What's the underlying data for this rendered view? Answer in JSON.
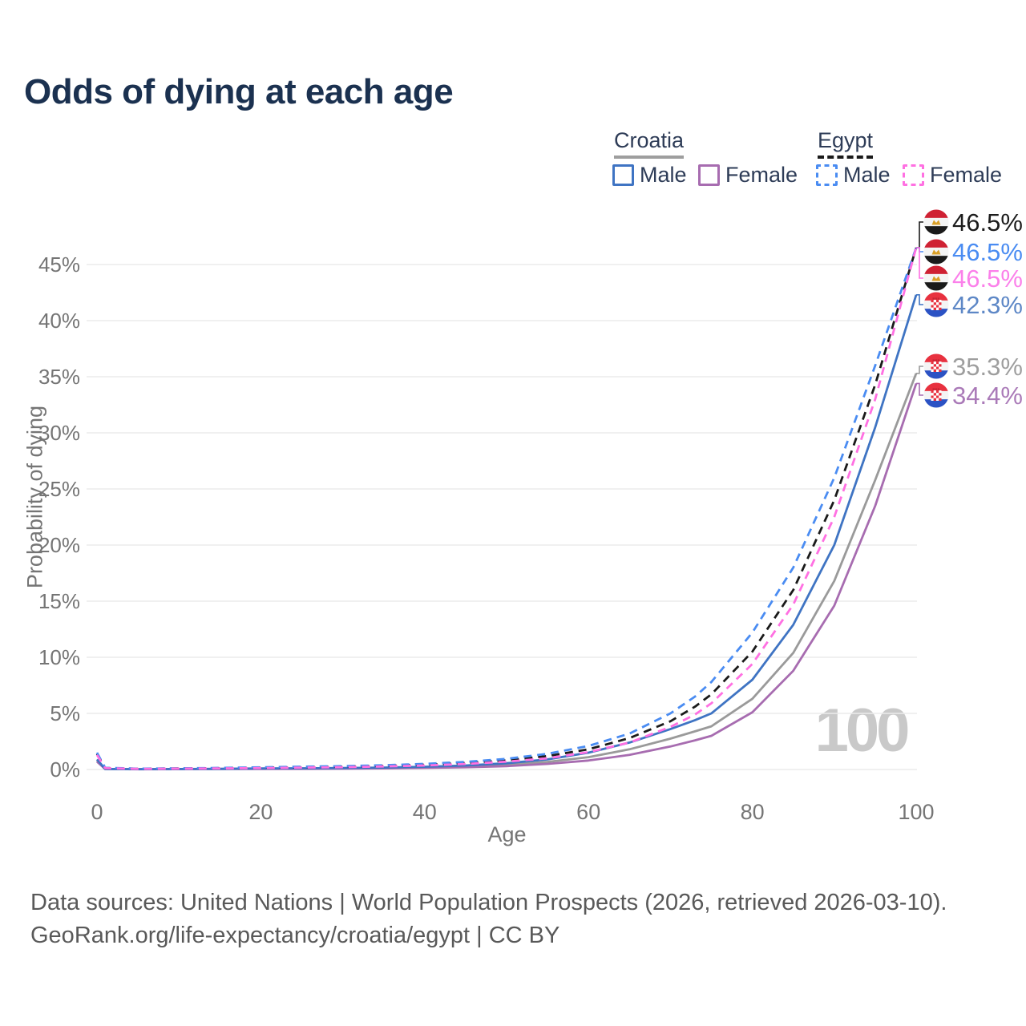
{
  "title": "Odds of dying at each age",
  "legend": {
    "groups": [
      {
        "name": "Croatia",
        "line_style": "solid",
        "header_color": "#9e9e9e",
        "items": [
          {
            "label": "Male",
            "color": "#3f74c3"
          },
          {
            "label": "Female",
            "color": "#a76cb0"
          }
        ]
      },
      {
        "name": "Egypt",
        "line_style": "dashed",
        "header_color": "#1a1a1a",
        "items": [
          {
            "label": "Male",
            "color": "#4a8cf2"
          },
          {
            "label": "Female",
            "color": "#ff70e2"
          }
        ]
      }
    ]
  },
  "axes": {
    "x_label": "Age",
    "y_label": "Probability of dying",
    "x_ticks": [
      "0",
      "20",
      "40",
      "60",
      "80",
      "100"
    ],
    "y_ticks": [
      "0%",
      "5%",
      "10%",
      "15%",
      "20%",
      "25%",
      "30%",
      "35%",
      "40%",
      "45%"
    ]
  },
  "watermark": "100",
  "footer": {
    "line1": "Data sources: United Nations | World Population Prospects (2026, retrieved 2026-03-10).",
    "line2": "GeoRank.org/life-expectancy/croatia/egypt | CC BY"
  },
  "chart_data": {
    "type": "line",
    "title": "Odds of dying at each age",
    "xlabel": "Age",
    "ylabel": "Probability of dying",
    "xlim": [
      0,
      100
    ],
    "ylim": [
      0,
      47
    ],
    "grid": "horizontal",
    "legend_position": "top-right",
    "x": [
      0,
      1,
      5,
      10,
      15,
      20,
      25,
      30,
      35,
      40,
      45,
      50,
      55,
      60,
      65,
      70,
      73,
      75,
      80,
      85,
      90,
      95,
      100
    ],
    "y_unit": "percent",
    "series": [
      {
        "id": "croatia-both",
        "name": "Croatia Both sexes",
        "country": "Croatia",
        "sex": "Both",
        "color": "#9a9a9a",
        "dash": false,
        "values": [
          0.8,
          0.045,
          0.025,
          0.035,
          0.05,
          0.07,
          0.085,
          0.1,
          0.13,
          0.18,
          0.27,
          0.42,
          0.68,
          1.1,
          1.8,
          2.75,
          3.4,
          3.85,
          6.3,
          10.4,
          16.8,
          25.8,
          35.3
        ]
      },
      {
        "id": "croatia-female",
        "name": "Croatia Female",
        "country": "Croatia",
        "sex": "Female",
        "color": "#a76cb0",
        "dash": false,
        "values": [
          0.7,
          0.04,
          0.02,
          0.03,
          0.04,
          0.05,
          0.06,
          0.075,
          0.1,
          0.14,
          0.2,
          0.3,
          0.5,
          0.8,
          1.3,
          2.05,
          2.6,
          3.0,
          5.1,
          8.8,
          14.6,
          23.5,
          34.4
        ]
      },
      {
        "id": "croatia-male",
        "name": "Croatia Male",
        "country": "Croatia",
        "sex": "Male",
        "color": "#3f74c3",
        "dash": false,
        "values": [
          0.9,
          0.05,
          0.03,
          0.04,
          0.06,
          0.09,
          0.11,
          0.13,
          0.17,
          0.24,
          0.36,
          0.56,
          0.9,
          1.5,
          2.4,
          3.6,
          4.4,
          5.0,
          8.0,
          12.9,
          20.0,
          30.5,
          42.3
        ]
      },
      {
        "id": "egypt-both",
        "name": "Egypt Both sexes",
        "country": "Egypt",
        "sex": "Both",
        "color": "#1a1a1a",
        "dash": true,
        "values": [
          1.4,
          0.13,
          0.07,
          0.09,
          0.12,
          0.17,
          0.21,
          0.26,
          0.33,
          0.43,
          0.58,
          0.82,
          1.2,
          1.8,
          2.8,
          4.3,
          5.6,
          6.7,
          10.5,
          16.0,
          24.0,
          34.3,
          46.5
        ]
      },
      {
        "id": "egypt-male",
        "name": "Egypt Male",
        "country": "Egypt",
        "sex": "Male",
        "color": "#4a8cf2",
        "dash": true,
        "values": [
          1.5,
          0.15,
          0.08,
          0.1,
          0.14,
          0.2,
          0.25,
          0.3,
          0.38,
          0.5,
          0.68,
          0.95,
          1.4,
          2.1,
          3.2,
          5.0,
          6.5,
          7.8,
          12.2,
          18.0,
          26.0,
          36.0,
          46.5
        ]
      },
      {
        "id": "egypt-female",
        "name": "Egypt Female",
        "country": "Egypt",
        "sex": "Female",
        "color": "#ff70e2",
        "dash": true,
        "values": [
          1.3,
          0.12,
          0.06,
          0.08,
          0.1,
          0.13,
          0.17,
          0.21,
          0.27,
          0.36,
          0.49,
          0.7,
          1.0,
          1.55,
          2.4,
          3.8,
          4.9,
          5.9,
          9.4,
          14.7,
          22.5,
          33.0,
          46.5
        ]
      }
    ],
    "end_labels": [
      {
        "series": "egypt-both",
        "text": "46.5%",
        "color": "#1c1c1c",
        "flag": "egypt"
      },
      {
        "series": "egypt-male",
        "text": "46.5%",
        "color": "#4a8cf2",
        "flag": "egypt"
      },
      {
        "series": "egypt-female",
        "text": "46.5%",
        "color": "#fb80ea",
        "flag": "egypt"
      },
      {
        "series": "croatia-male",
        "text": "42.3%",
        "color": "#5d87c6",
        "flag": "croatia"
      },
      {
        "series": "croatia-both",
        "text": "35.3%",
        "color": "#9e9e9e",
        "flag": "croatia"
      },
      {
        "series": "croatia-female",
        "text": "34.4%",
        "color": "#aa7ab8",
        "flag": "croatia"
      }
    ]
  }
}
